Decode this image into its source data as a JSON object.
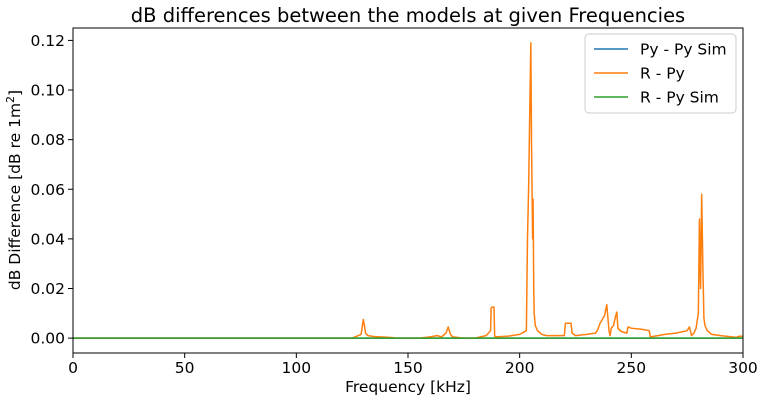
{
  "chart_data": {
    "type": "line",
    "title": "dB differences between the models at given Frequencies",
    "xlabel": "Frequency [kHz]",
    "ylabel": "dB Difference [dB re 1m²]",
    "xlim": [
      0,
      300
    ],
    "ylim": [
      -0.006,
      0.125
    ],
    "xticks": [
      0,
      50,
      100,
      150,
      200,
      250,
      300
    ],
    "xtick_labels": [
      "0",
      "50",
      "100",
      "150",
      "200",
      "250",
      "300"
    ],
    "yticks": [
      0.0,
      0.02,
      0.04,
      0.06,
      0.08,
      0.1,
      0.12
    ],
    "ytick_labels": [
      "0.00",
      "0.02",
      "0.04",
      "0.06",
      "0.08",
      "0.10",
      "0.12"
    ],
    "grid": false,
    "legend_position": "top-right",
    "series": [
      {
        "name": "Py - Py Sim",
        "color": "#1f77b4",
        "x": [
          0,
          300
        ],
        "y": [
          0,
          0
        ]
      },
      {
        "name": "R - Py",
        "color": "#ff7f0e",
        "x": [
          0,
          125,
          129,
          130,
          130.5,
          131,
          132,
          135,
          140,
          143,
          145,
          150,
          155,
          160,
          163,
          165,
          167,
          168,
          168.5,
          169,
          170,
          175,
          180,
          185,
          187,
          187.2,
          187.5,
          188.5,
          188.8,
          189,
          195,
          200,
          203,
          203.5,
          204,
          204.5,
          205,
          205.3,
          205.8,
          206,
          206.3,
          206.5,
          207,
          208,
          210,
          212,
          215,
          220,
          220.5,
          223,
          223.5,
          225,
          230,
          234,
          235,
          236,
          238,
          239,
          240,
          240.5,
          241,
          242,
          243,
          243.5,
          244,
          244.5,
          245,
          246,
          248,
          248.5,
          250,
          255,
          258,
          258.5,
          262,
          265,
          270,
          275,
          276,
          277,
          278,
          279,
          280,
          280.5,
          281,
          281.5,
          282,
          282.5,
          283,
          284,
          286,
          290,
          295,
          297,
          298,
          300
        ],
        "y": [
          0,
          0,
          0.0015,
          0.0075,
          0.005,
          0.002,
          0.001,
          0.0006,
          0.0004,
          0.0002,
          0,
          0,
          0,
          0.0005,
          0.001,
          0.0005,
          0.002,
          0.0045,
          0.003,
          0.0015,
          0.0005,
          0,
          0,
          0.001,
          0.003,
          0.012,
          0.0125,
          0.0125,
          0.001,
          0.0005,
          0.0008,
          0.0015,
          0.003,
          0.04,
          0.06,
          0.09,
          0.119,
          0.08,
          0.04,
          0.056,
          0.02,
          0.01,
          0.005,
          0.003,
          0.0015,
          0.001,
          0.001,
          0.001,
          0.006,
          0.006,
          0.002,
          0.001,
          0.0015,
          0.002,
          0.0035,
          0.006,
          0.009,
          0.0135,
          0.003,
          0.001,
          0.004,
          0.005,
          0.009,
          0.0105,
          0.004,
          0.0035,
          0.003,
          0.0025,
          0.002,
          0.0045,
          0.004,
          0.0035,
          0.003,
          0.0005,
          0.001,
          0.0015,
          0.002,
          0.003,
          0.0045,
          0.001,
          0.002,
          0.004,
          0.01,
          0.048,
          0.02,
          0.058,
          0.03,
          0.008,
          0.005,
          0.003,
          0.0015,
          0.001,
          0.0005,
          0.0003,
          0.0007,
          0.0008
        ]
      },
      {
        "name": "R - Py Sim",
        "color": "#2ca02c",
        "x": [
          0,
          300
        ],
        "y": [
          0,
          0
        ]
      }
    ]
  }
}
